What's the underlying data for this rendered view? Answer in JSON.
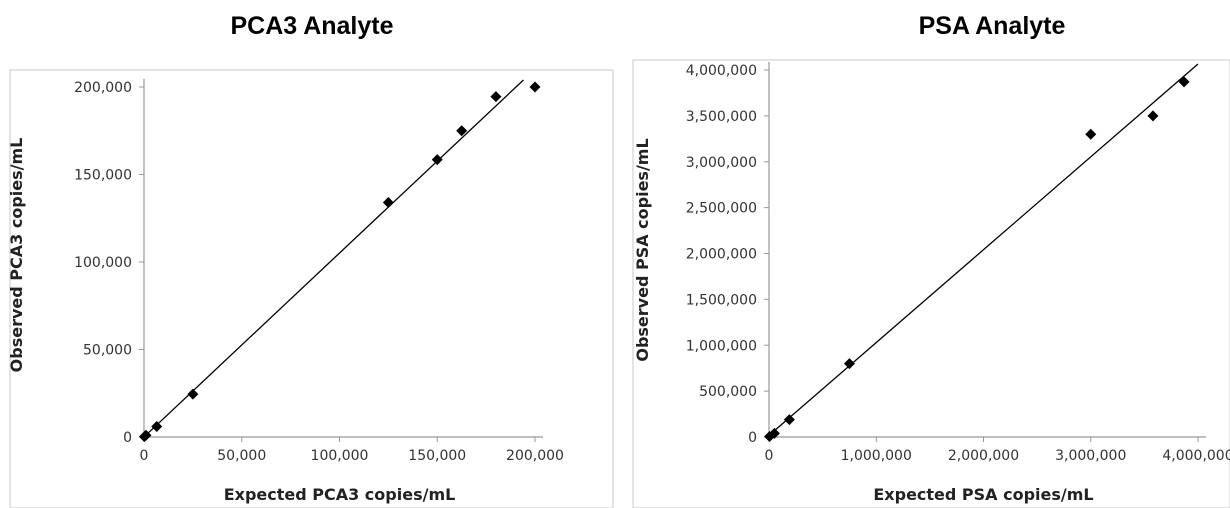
{
  "chart_data": [
    {
      "type": "scatter",
      "title": "PCA3 Analyte",
      "xlabel": "Expected PCA3 copies/mL",
      "ylabel": "Observed PCA3 copies/mL",
      "xlim": [
        0,
        200000
      ],
      "ylim": [
        0,
        200000
      ],
      "xticks": [
        "0",
        "50,000",
        "100,000",
        "150,000",
        "200,000"
      ],
      "yticks": [
        "0",
        "50,000",
        "100,000",
        "150,000",
        "200,000"
      ],
      "grid": false,
      "marker_color": "#000000",
      "trendline": true,
      "series": [
        {
          "x": [
            200,
            1000,
            6500,
            25000,
            125000,
            150000,
            162500,
            180000,
            200000
          ],
          "y": [
            200,
            1000,
            6000,
            24500,
            134000,
            158500,
            175000,
            194500,
            200000
          ]
        }
      ]
    },
    {
      "type": "scatter",
      "title": "PSA Analyte",
      "xlabel": "Expected PSA copies/mL",
      "ylabel": "Observed PSA copies/mL",
      "xlim": [
        0,
        4000000
      ],
      "ylim": [
        0,
        4000000
      ],
      "xticks": [
        "0",
        "1,000,000",
        "2,000,000",
        "3,000,000",
        "4,000,000"
      ],
      "yticks": [
        "0",
        "500,000",
        "1,000,000",
        "1,500,000",
        "2,000,000",
        "2,500,000",
        "3,000,000",
        "3,500,000",
        "4,000,000"
      ],
      "grid": false,
      "marker_color": "#000000",
      "trendline": true,
      "series": [
        {
          "x": [
            5000,
            50000,
            190000,
            750000,
            3000000,
            3580000,
            3870000
          ],
          "y": [
            5000,
            40000,
            190000,
            800000,
            3300000,
            3500000,
            3870000
          ]
        }
      ]
    }
  ]
}
